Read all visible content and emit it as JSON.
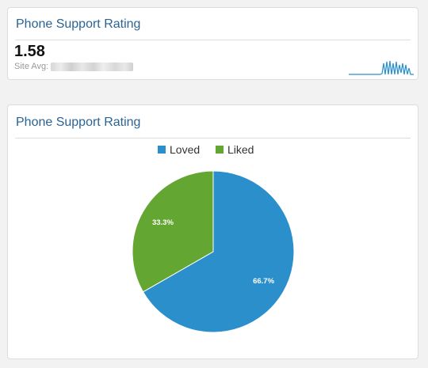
{
  "widget_summary": {
    "title": "Phone Support Rating",
    "value": "1.58",
    "site_avg_label": "Site Avg:",
    "sparkline_color": "#2a8fcb"
  },
  "chart_data": {
    "type": "pie",
    "title": "Phone Support Rating",
    "categories": [
      "Loved",
      "Liked"
    ],
    "values": [
      66.7,
      33.3
    ],
    "labels": [
      "66.7%",
      "33.3%"
    ],
    "colors": [
      "#2a8fcb",
      "#63a632"
    ],
    "legend": "top-center"
  }
}
